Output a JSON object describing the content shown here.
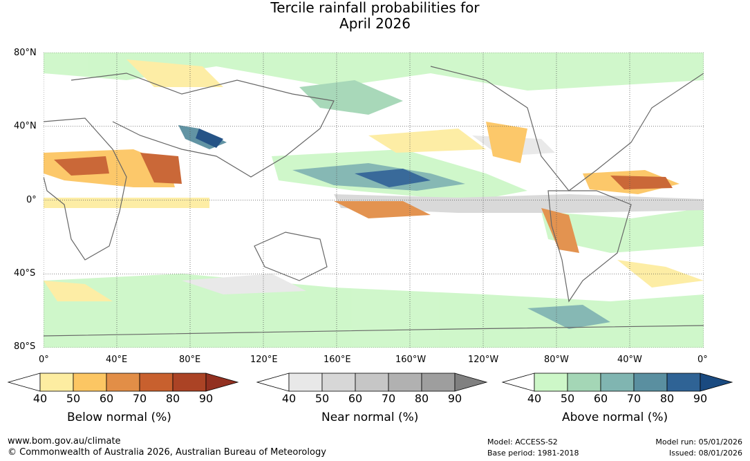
{
  "title_line1": "Tercile rainfall probabilities for",
  "title_line2": "April 2026",
  "lat_labels": [
    "80°N",
    "40°N",
    "0°",
    "40°S",
    "80°S"
  ],
  "lon_labels": [
    "0°",
    "40°E",
    "80°E",
    "120°E",
    "160°E",
    "160°W",
    "120°W",
    "80°W",
    "40°W",
    "0°"
  ],
  "colorbars": [
    {
      "name": "Below normal (%)",
      "ticks": [
        "40",
        "50",
        "60",
        "70",
        "80",
        "90"
      ],
      "colors": [
        "#ffffff",
        "#fdeda1",
        "#fcc663",
        "#e28e47",
        "#c8602e",
        "#ab4325",
        "#923020"
      ]
    },
    {
      "name": "Near normal (%)",
      "ticks": [
        "40",
        "50",
        "60",
        "70",
        "80",
        "90"
      ],
      "colors": [
        "#ffffff",
        "#e8e8e8",
        "#d7d7d7",
        "#c6c6c6",
        "#b1b1b1",
        "#9e9e9e",
        "#808080"
      ]
    },
    {
      "name": "Above normal (%)",
      "ticks": [
        "40",
        "50",
        "60",
        "70",
        "80",
        "90"
      ],
      "colors": [
        "#ffffff",
        "#cdf7c8",
        "#a4d6b6",
        "#80b5b1",
        "#5a8fa0",
        "#2f6395",
        "#1a4a80"
      ]
    }
  ],
  "footer": {
    "url": "www.bom.gov.au/climate",
    "copyright": "© Commonwealth of Australia 2026, Australian Bureau of Meteorology",
    "model": "Model: ACCESS-S2",
    "base_period": "Base period: 1981-2018",
    "model_run": "Model run: 05/01/2026",
    "issued": "Issued: 08/01/2026"
  }
}
